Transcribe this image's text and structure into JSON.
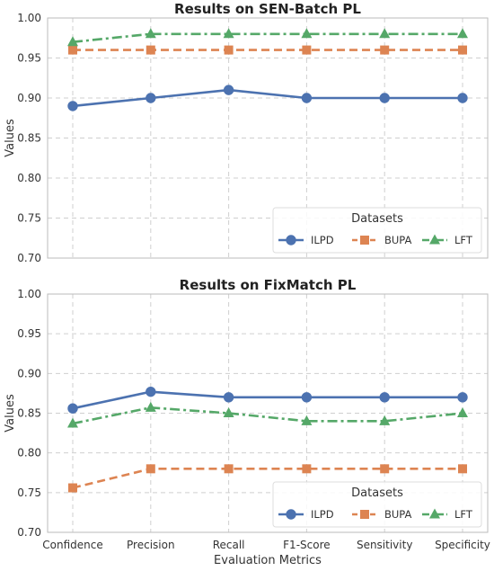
{
  "chart_data": [
    {
      "type": "line",
      "title": "Results on SEN-Batch PL",
      "xlabel": "",
      "ylabel": "Values",
      "ylim": [
        0.7,
        1.0
      ],
      "yticks": [
        "0.70",
        "0.75",
        "0.80",
        "0.85",
        "0.90",
        "0.95",
        "1.00"
      ],
      "categories": [
        "Confidence",
        "Precision",
        "Recall",
        "F1-Score",
        "Sensitivity",
        "Specificity"
      ],
      "show_xtick_labels": false,
      "grid": true,
      "legend": {
        "title": "Datasets",
        "placement": "lower-right"
      },
      "series": [
        {
          "name": "ILPD",
          "values": [
            0.89,
            0.9,
            0.91,
            0.9,
            0.9,
            0.9
          ],
          "color": "#4c72b0",
          "marker": "circle",
          "dash": "solid"
        },
        {
          "name": "BUPA",
          "values": [
            0.96,
            0.96,
            0.96,
            0.96,
            0.96,
            0.96
          ],
          "color": "#dd8452",
          "marker": "square",
          "dash": "dashed"
        },
        {
          "name": "LFT",
          "values": [
            0.97,
            0.98,
            0.98,
            0.98,
            0.98,
            0.98
          ],
          "color": "#55a868",
          "marker": "triangle",
          "dash": "dashdot"
        }
      ]
    },
    {
      "type": "line",
      "title": "Results on FixMatch PL",
      "xlabel": "Evaluation Metrics",
      "ylabel": "Values",
      "ylim": [
        0.7,
        1.0
      ],
      "yticks": [
        "0.70",
        "0.75",
        "0.80",
        "0.85",
        "0.90",
        "0.95",
        "1.00"
      ],
      "categories": [
        "Confidence",
        "Precision",
        "Recall",
        "F1-Score",
        "Sensitivity",
        "Specificity"
      ],
      "show_xtick_labels": true,
      "grid": true,
      "legend": {
        "title": "Datasets",
        "placement": "lower-right"
      },
      "series": [
        {
          "name": "ILPD",
          "values": [
            0.856,
            0.877,
            0.87,
            0.87,
            0.87,
            0.87
          ],
          "color": "#4c72b0",
          "marker": "circle",
          "dash": "solid"
        },
        {
          "name": "BUPA",
          "values": [
            0.756,
            0.78,
            0.78,
            0.78,
            0.78,
            0.78
          ],
          "color": "#dd8452",
          "marker": "square",
          "dash": "dashed"
        },
        {
          "name": "LFT",
          "values": [
            0.837,
            0.857,
            0.85,
            0.84,
            0.84,
            0.85
          ],
          "color": "#55a868",
          "marker": "triangle",
          "dash": "dashdot"
        }
      ]
    }
  ]
}
